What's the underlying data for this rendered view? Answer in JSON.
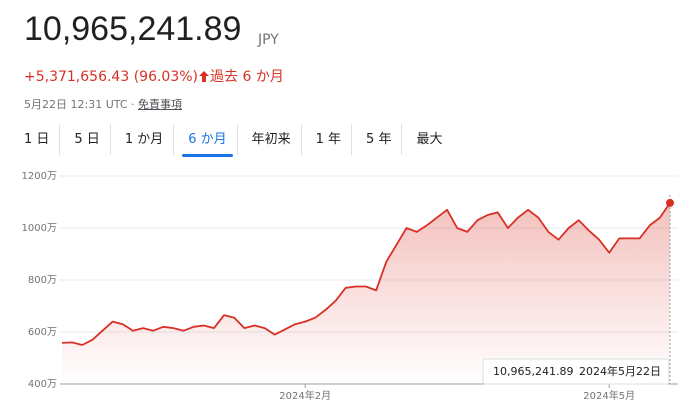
{
  "header": {
    "price": "10,965,241.89",
    "currency": "JPY",
    "change": "+5,371,656.43 (96.03%)",
    "period": "過去 6 か月",
    "timestamp": "5月22日 12:31 UTC ·",
    "disclaimer": "免責事項"
  },
  "tabs": [
    "1 日",
    "5 日",
    "1 か月",
    "6 か月",
    "年初来",
    "1 年",
    "5 年",
    "最大"
  ],
  "chart_data": {
    "type": "line",
    "color": "#d93025",
    "categories": [
      null,
      null,
      null,
      null,
      null,
      null,
      null,
      null,
      null,
      null,
      null,
      null,
      null,
      null,
      null,
      null,
      null,
      null,
      null,
      null,
      null,
      null,
      null,
      null,
      "2024年2月",
      null,
      null,
      null,
      null,
      null,
      null,
      null,
      null,
      null,
      null,
      null,
      null,
      null,
      null,
      null,
      null,
      null,
      null,
      null,
      null,
      null,
      null,
      null,
      null,
      null,
      null,
      null,
      null,
      null,
      "2024年5月",
      null,
      null,
      null,
      null,
      null,
      null
    ],
    "values": [
      5580000,
      5600000,
      5500000,
      5700000,
      6050000,
      6400000,
      6300000,
      6050000,
      6150000,
      6050000,
      6200000,
      6150000,
      6050000,
      6200000,
      6250000,
      6150000,
      6650000,
      6550000,
      6150000,
      6250000,
      6150000,
      5900000,
      6100000,
      6300000,
      6400000,
      6550000,
      6850000,
      7200000,
      7700000,
      7750000,
      7750000,
      7600000,
      8700000,
      9350000,
      10000000,
      9850000,
      10100000,
      10400000,
      10700000,
      10000000,
      9850000,
      10300000,
      10500000,
      10600000,
      10000000,
      10400000,
      10700000,
      10400000,
      9850000,
      9550000,
      10000000,
      10300000,
      9900000,
      9550000,
      9050000,
      9600000,
      9600000,
      9600000,
      10100000,
      10400000,
      10965241.89
    ],
    "ylim": [
      4000000,
      12000000
    ],
    "yticks": [
      {
        "value": 4000000,
        "label": "400万"
      },
      {
        "value": 6000000,
        "label": "600万"
      },
      {
        "value": 8000000,
        "label": "800万"
      },
      {
        "value": 10000000,
        "label": "1000万"
      },
      {
        "value": 12000000,
        "label": "1200万"
      }
    ],
    "grid": true,
    "tooltip": {
      "value": "10,965,241.89",
      "date": "2024年5月22日"
    }
  }
}
